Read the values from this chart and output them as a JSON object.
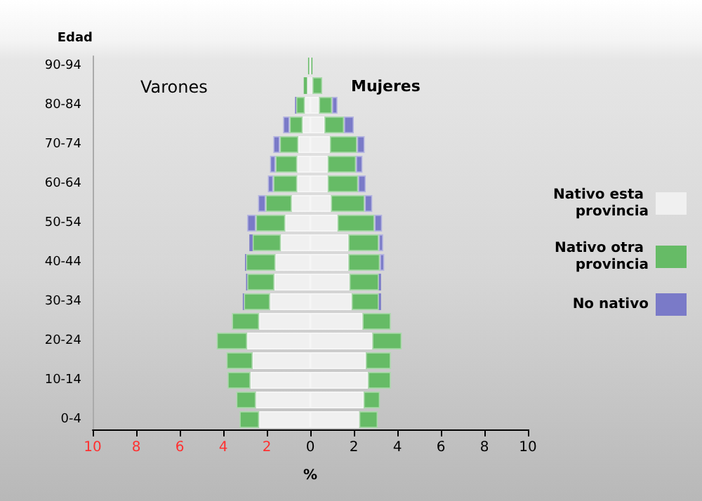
{
  "chart_data": {
    "type": "bar",
    "orientation": "horizontal",
    "stacked": true,
    "categories": [
      "90-94",
      null,
      "80-84",
      null,
      "70-74",
      null,
      "60-64",
      null,
      "50-54",
      null,
      "40-44",
      null,
      "30-34",
      null,
      "20-24",
      null,
      "10-14",
      null,
      "0-4"
    ],
    "xlabel": "%",
    "ylabel": "Edad",
    "annotations": [
      "Varones",
      "Mujeres"
    ],
    "xlim": [
      -10,
      10
    ],
    "xticks": [
      {
        "value": -10,
        "label": "10"
      },
      {
        "value": -8,
        "label": "8"
      },
      {
        "value": -6,
        "label": "6"
      },
      {
        "value": -4,
        "label": "4"
      },
      {
        "value": -2,
        "label": "2"
      },
      0,
      2,
      4,
      6,
      8,
      10
    ],
    "grid": false,
    "legend": "right",
    "series": [
      {
        "color": "#f0f0f0",
        "values": [
          -0.05,
          -0.15,
          -0.25,
          -0.35,
          -0.55,
          -0.6,
          -0.6,
          -0.85,
          -1.15,
          -1.35,
          -1.6,
          -1.65,
          -1.85,
          -2.35,
          -2.9,
          -2.65,
          -2.75,
          -2.5,
          -2.35
        ]
      },
      {
        "color": "#66bb66",
        "values": [
          -0.05,
          -0.15,
          -0.4,
          -0.6,
          -0.85,
          -1.0,
          -1.1,
          -1.2,
          -1.35,
          -1.3,
          -1.35,
          -1.25,
          -1.2,
          -1.25,
          -1.4,
          -1.2,
          -1.05,
          -0.9,
          -0.9
        ]
      },
      {
        "color": "#7a7ac8",
        "values": [
          0,
          0,
          -0.05,
          -0.3,
          -0.3,
          -0.25,
          -0.25,
          -0.35,
          -0.4,
          -0.15,
          -0.05,
          -0.05,
          -0.05,
          0,
          0,
          0,
          0,
          0,
          0
        ]
      },
      {
        "name": "Nativo esta provincia",
        "color": "#f0f0f0",
        "values": [
          0.05,
          0.1,
          0.4,
          0.65,
          0.9,
          0.8,
          0.8,
          0.95,
          1.25,
          1.75,
          1.75,
          1.8,
          1.9,
          2.4,
          2.85,
          2.55,
          2.65,
          2.45,
          2.25
        ]
      },
      {
        "name": "Nativo otra provincia",
        "color": "#66bb66",
        "values": [
          0.05,
          0.45,
          0.6,
          0.9,
          1.25,
          1.3,
          1.4,
          1.55,
          1.7,
          1.4,
          1.45,
          1.35,
          1.25,
          1.3,
          1.35,
          1.15,
          1.05,
          0.75,
          0.85
        ]
      },
      {
        "name": "No nativo",
        "color": "#7a7ac8",
        "values": [
          0,
          0,
          0.25,
          0.45,
          0.35,
          0.3,
          0.35,
          0.35,
          0.35,
          0.2,
          0.2,
          0.1,
          0.1,
          0,
          0,
          0,
          0,
          0,
          0
        ]
      }
    ]
  }
}
